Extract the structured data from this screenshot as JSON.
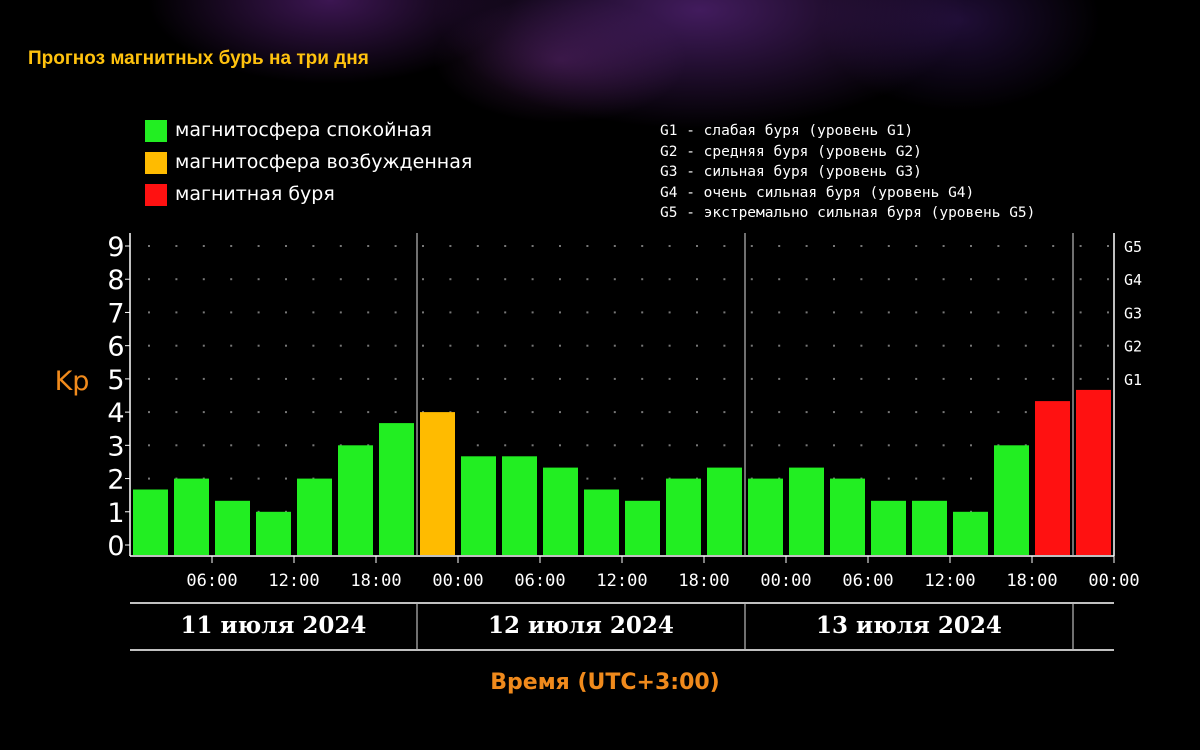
{
  "title": "Прогноз магнитных бурь на три дня",
  "legend": [
    {
      "label": "магнитосфера спокойная",
      "color": "#22ee22"
    },
    {
      "label": "магнитосфера возбужденная",
      "color": "#ffbb00"
    },
    {
      "label": "магнитная буря",
      "color": "#ff1111"
    }
  ],
  "g_legend": [
    "G1 - слабая буря (уровень G1)",
    "G2 - средняя буря (уровень G2)",
    "G3 - сильная буря (уровень G3)",
    "G4 - очень сильная буря (уровень G4)",
    "G5 - экстремально сильная буря (уровень G5)"
  ],
  "chart_data": {
    "type": "bar",
    "title": "Прогноз магнитных бурь на три дня",
    "ylabel": "Kp",
    "xlabel": "Время (UTC+3:00)",
    "ylim": [
      0,
      9
    ],
    "y_ticks": [
      "0",
      "1",
      "2",
      "3",
      "4",
      "5",
      "6",
      "7",
      "8",
      "9"
    ],
    "g_ticks": [
      {
        "label": "G1",
        "kp": 5
      },
      {
        "label": "G2",
        "kp": 6
      },
      {
        "label": "G3",
        "kp": 7
      },
      {
        "label": "G4",
        "kp": 8
      },
      {
        "label": "G5",
        "kp": 9
      }
    ],
    "time_ticks": [
      "06:00",
      "12:00",
      "18:00",
      "00:00",
      "06:00",
      "12:00",
      "18:00",
      "00:00",
      "06:00",
      "12:00",
      "18:00",
      "00:00"
    ],
    "days": [
      "11 июля 2024",
      "12 июля 2024",
      "13 июля 2024"
    ],
    "values": [
      1.67,
      2.0,
      1.33,
      1.0,
      2.0,
      3.0,
      3.67,
      4.0,
      2.67,
      2.67,
      2.33,
      1.67,
      1.33,
      2.0,
      2.33,
      2.0,
      2.33,
      2.0,
      1.33,
      1.33,
      1.0,
      3.0,
      4.33,
      4.67
    ],
    "bar_colors": [
      "#22ee22",
      "#22ee22",
      "#22ee22",
      "#22ee22",
      "#22ee22",
      "#22ee22",
      "#22ee22",
      "#ffbb00",
      "#22ee22",
      "#22ee22",
      "#22ee22",
      "#22ee22",
      "#22ee22",
      "#22ee22",
      "#22ee22",
      "#22ee22",
      "#22ee22",
      "#22ee22",
      "#22ee22",
      "#22ee22",
      "#22ee22",
      "#22ee22",
      "#ff1111",
      "#ff1111"
    ],
    "grid": true,
    "legend_position": "top-left"
  },
  "colors": {
    "title": "#ffc20e",
    "axis_label": "#f08a1c",
    "grid_dots": "#777777"
  }
}
